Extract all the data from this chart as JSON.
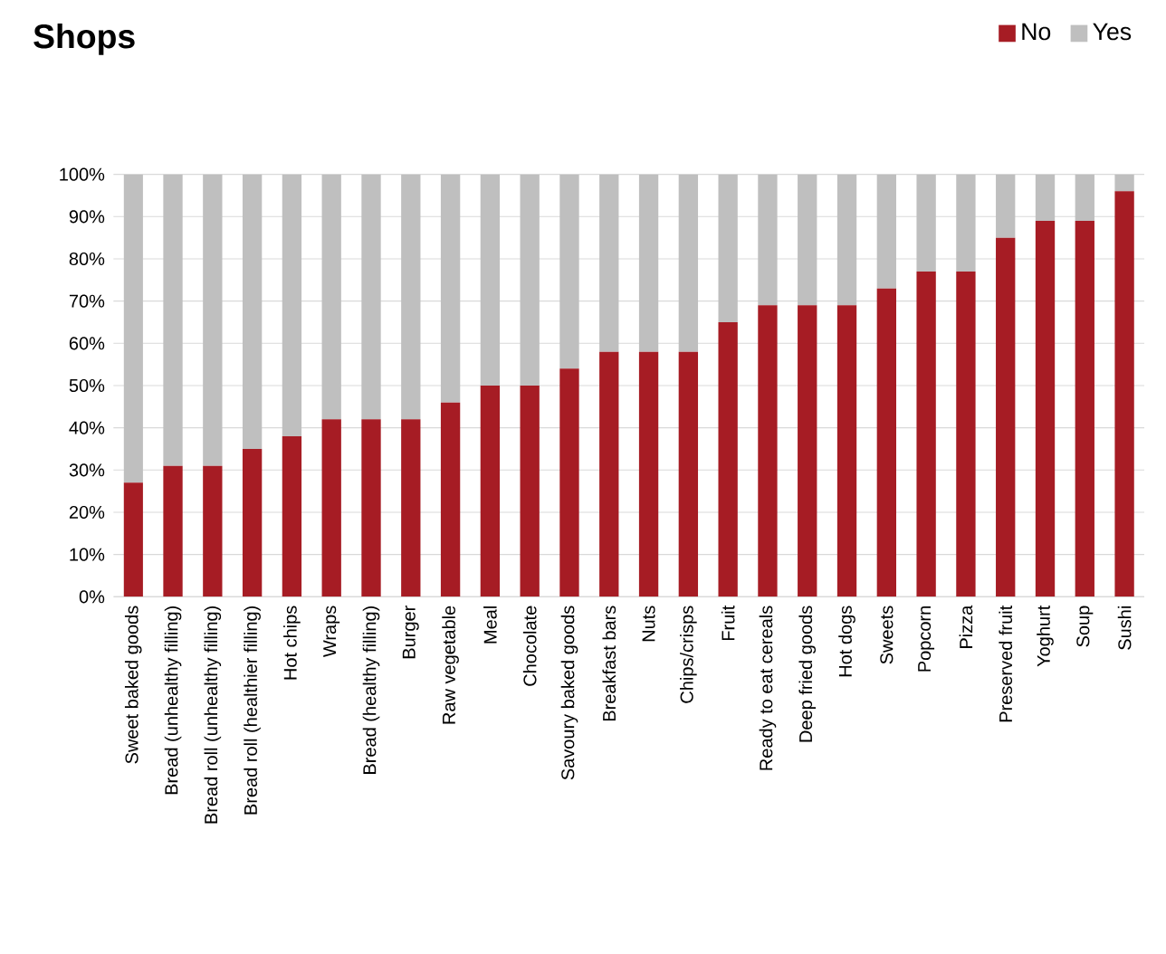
{
  "chart_data": {
    "type": "bar",
    "title": "Shops",
    "stacked": true,
    "categories": [
      "Sweet baked goods",
      "Bread (unhealthy filling)",
      "Bread roll (unhealthy filling)",
      "Bread roll (healthier filling)",
      "Hot chips",
      "Wraps",
      "Bread (healthy filling)",
      "Burger",
      "Raw vegetable",
      "Meal",
      "Chocolate",
      "Savoury baked goods",
      "Breakfast bars",
      "Nuts",
      "Chips/crisps",
      "Fruit",
      "Ready to eat cereals",
      "Deep fried goods",
      "Hot dogs",
      "Sweets",
      "Popcorn",
      "Pizza",
      "Preserved fruit",
      "Yoghurt",
      "Soup",
      "Sushi"
    ],
    "series": [
      {
        "name": "No",
        "color": "#a61c24",
        "values": [
          27,
          31,
          31,
          35,
          38,
          42,
          42,
          42,
          46,
          50,
          50,
          54,
          58,
          58,
          58,
          65,
          69,
          69,
          69,
          73,
          77,
          77,
          85,
          89,
          89,
          96
        ]
      },
      {
        "name": "Yes",
        "color": "#bfbfbf",
        "values": [
          73,
          69,
          69,
          65,
          62,
          58,
          58,
          58,
          54,
          50,
          50,
          46,
          42,
          42,
          42,
          35,
          31,
          31,
          31,
          27,
          23,
          23,
          15,
          11,
          11,
          4
        ]
      }
    ],
    "ylim": [
      0,
      100
    ],
    "yticks": [
      {
        "value": 0,
        "label": "0%"
      },
      {
        "value": 10,
        "label": "10%"
      },
      {
        "value": 20,
        "label": "20%"
      },
      {
        "value": 30,
        "label": "30%"
      },
      {
        "value": 40,
        "label": "40%"
      },
      {
        "value": 50,
        "label": "50%"
      },
      {
        "value": 60,
        "label": "60%"
      },
      {
        "value": 70,
        "label": "70%"
      },
      {
        "value": 80,
        "label": "80%"
      },
      {
        "value": 90,
        "label": "90%"
      },
      {
        "value": 100,
        "label": "100%"
      }
    ],
    "grid": "y",
    "legend": "top right"
  }
}
